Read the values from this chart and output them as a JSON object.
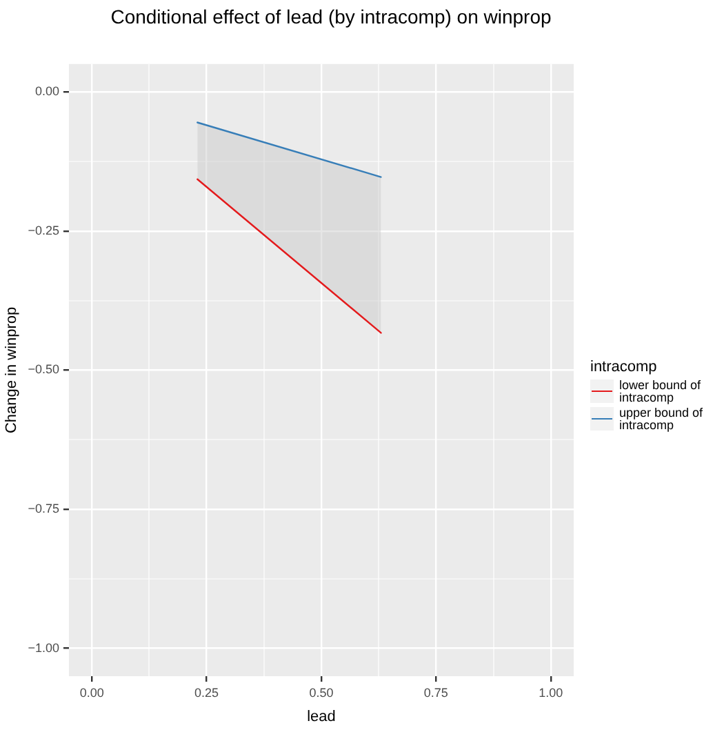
{
  "chart_data": {
    "type": "line",
    "title": "Conditional effect of lead (by intracomp) on winprop",
    "xlabel": "lead",
    "ylabel": "Change in winprop",
    "legend_title": "intracomp",
    "legend": "right",
    "grid": true,
    "marker": "none",
    "line_style": "solid",
    "xlim": [
      -0.05,
      1.05
    ],
    "x": [
      0.23,
      0.63
    ],
    "xticks": [
      {
        "value": 0,
        "label": "0.00"
      },
      {
        "value": 0.125,
        "label": null
      },
      0.25,
      {
        "value": 0.375,
        "label": null
      },
      {
        "value": 0.5,
        "label": "0.50"
      },
      {
        "value": 0.625,
        "label": null
      },
      0.75,
      {
        "value": 0.875,
        "label": null
      },
      {
        "value": 1,
        "label": "1.00"
      }
    ],
    "ylim": [
      -1.05,
      0.05
    ],
    "yticks": [
      {
        "value": -1,
        "label": "−1.00"
      },
      {
        "value": -0.875,
        "label": null
      },
      {
        "value": -0.75,
        "label": "−0.75"
      },
      {
        "value": -0.625,
        "label": null
      },
      {
        "value": -0.5,
        "label": "−0.50"
      },
      {
        "value": -0.375,
        "label": null
      },
      {
        "value": -0.25,
        "label": "−0.25"
      },
      {
        "value": -0.125,
        "label": null
      },
      {
        "value": 0,
        "label": "0.00"
      }
    ],
    "series": [
      {
        "name": "lower bound of intracomp",
        "color": "#e41a1c",
        "values": [
          -0.157,
          -0.433
        ]
      },
      {
        "name": "upper bound of intracomp",
        "color": "#377eb8",
        "values": [
          -0.055,
          -0.153
        ],
        "lower": [
          -0.157,
          -0.433
        ],
        "upper": [
          -0.055,
          -0.153
        ]
      }
    ]
  }
}
